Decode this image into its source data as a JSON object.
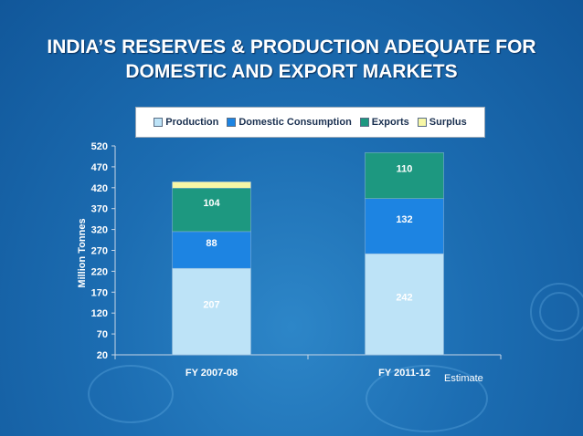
{
  "slide": {
    "title_line1": "INDIA’S RESERVES & PRODUCTION ADEQUATE FOR",
    "title_line2": "DOMESTIC AND EXPORT MARKETS",
    "note": "Estimate"
  },
  "chart_data": {
    "type": "bar",
    "stacked": true,
    "categories": [
      "FY 2007-08",
      "FY 2011-12"
    ],
    "series": [
      {
        "name": "Production",
        "values": [
          207,
          242
        ],
        "labels": [
          "207",
          "242"
        ],
        "color": "#bde3f7"
      },
      {
        "name": "Domestic Consumption",
        "values": [
          88,
          132
        ],
        "labels": [
          "88",
          "132"
        ],
        "color": "#1d84e2"
      },
      {
        "name": "Exports",
        "values": [
          104,
          110
        ],
        "labels": [
          "104",
          "110"
        ],
        "color": "#1d9880"
      },
      {
        "name": "Surplus",
        "values": [
          15,
          0
        ],
        "labels": [
          "",
          ""
        ],
        "color": "#f7f7a6"
      }
    ],
    "ylabel": "Million Tonnes",
    "xlabel": "",
    "ylim": [
      20,
      520
    ],
    "yticks": [
      20,
      70,
      120,
      170,
      220,
      270,
      320,
      370,
      420,
      470,
      520
    ],
    "legend": "top",
    "grid": false
  }
}
